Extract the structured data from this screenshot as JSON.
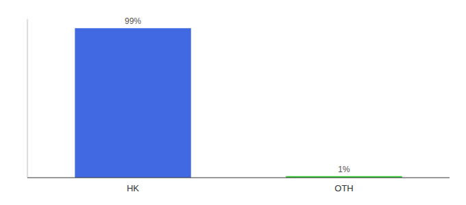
{
  "chart_data": {
    "type": "bar",
    "categories": [
      "HK",
      "OTH"
    ],
    "values": [
      99,
      1
    ],
    "value_labels": [
      "99%",
      "1%"
    ],
    "colors": [
      "#4169e1",
      "#32cd32"
    ],
    "ylim": [
      0,
      105
    ],
    "yticks": [],
    "tick_labels": "x",
    "grid": false,
    "data_labels": true
  }
}
